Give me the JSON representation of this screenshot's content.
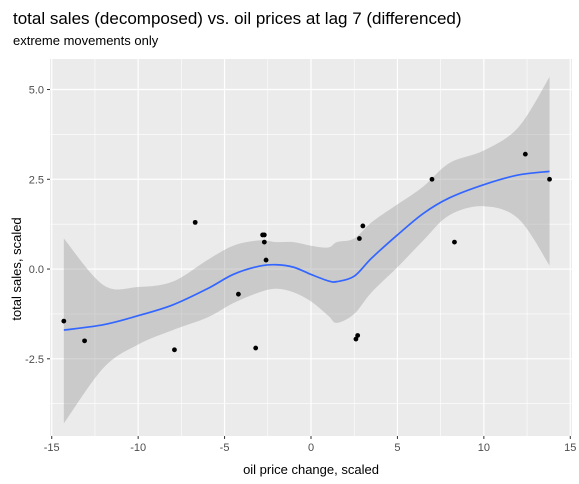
{
  "chart_data": {
    "type": "scatter",
    "title": "total sales (decomposed) vs. oil prices at lag 7 (differenced)",
    "subtitle": "extreme movements only",
    "xlabel": "oil price change, scaled",
    "ylabel": "total sales, scaled",
    "xlim": [
      -15.1,
      15.1
    ],
    "ylim": [
      -4.65,
      5.85
    ],
    "x_ticks": [
      -15,
      -10,
      -5,
      0,
      5,
      10,
      15
    ],
    "x_tick_labels": [
      "-15",
      "-10",
      "-5",
      "0",
      "5",
      "10",
      "15"
    ],
    "y_ticks": [
      -2.5,
      0,
      2.5,
      5
    ],
    "y_tick_labels": [
      "-2.5",
      "0.0",
      "2.5",
      "5.0"
    ],
    "grid": true,
    "panel_color": "#ebebeb",
    "grid_color": "#ffffff",
    "point_color": "#000000",
    "smooth_color": "#3366ff",
    "band_color": "#999999",
    "points": [
      {
        "x": -14.3,
        "y": -1.45
      },
      {
        "x": -13.1,
        "y": -2.0
      },
      {
        "x": -7.9,
        "y": -2.25
      },
      {
        "x": -6.7,
        "y": 1.3
      },
      {
        "x": -4.2,
        "y": -0.7
      },
      {
        "x": -3.2,
        "y": -2.2
      },
      {
        "x": -2.8,
        "y": 0.95
      },
      {
        "x": -2.7,
        "y": 0.95
      },
      {
        "x": -2.7,
        "y": 0.75
      },
      {
        "x": -2.6,
        "y": 0.25
      },
      {
        "x": 2.6,
        "y": -1.95
      },
      {
        "x": 2.7,
        "y": -1.85
      },
      {
        "x": 2.8,
        "y": 0.85
      },
      {
        "x": 3.0,
        "y": 1.2
      },
      {
        "x": 7.0,
        "y": 2.5
      },
      {
        "x": 8.3,
        "y": 0.75
      },
      {
        "x": 12.4,
        "y": 3.2
      },
      {
        "x": 13.8,
        "y": 2.5
      }
    ],
    "smooth": {
      "x": [
        -14.3,
        -12,
        -10,
        -8,
        -6,
        -4.5,
        -3,
        -2,
        -1,
        0,
        1,
        1.5,
        2.5,
        3.5,
        5,
        6.5,
        8,
        10,
        12,
        13.8
      ],
      "y": [
        -1.7,
        -1.55,
        -1.3,
        -1.0,
        -0.55,
        -0.15,
        0.08,
        0.12,
        0.05,
        -0.15,
        -0.33,
        -0.35,
        -0.2,
        0.3,
        0.95,
        1.55,
        1.98,
        2.35,
        2.62,
        2.72
      ],
      "lower": [
        -4.3,
        -2.75,
        -2.1,
        -1.7,
        -1.35,
        -0.95,
        -0.65,
        -0.55,
        -0.65,
        -0.9,
        -1.3,
        -1.5,
        -1.25,
        -0.65,
        0.05,
        0.8,
        1.5,
        1.75,
        1.4,
        0.1
      ],
      "upper": [
        0.85,
        -0.45,
        -0.5,
        -0.35,
        0.25,
        0.65,
        0.8,
        0.75,
        0.75,
        0.65,
        0.6,
        0.75,
        0.85,
        1.3,
        1.8,
        2.3,
        2.95,
        3.3,
        3.95,
        5.35
      ]
    }
  }
}
